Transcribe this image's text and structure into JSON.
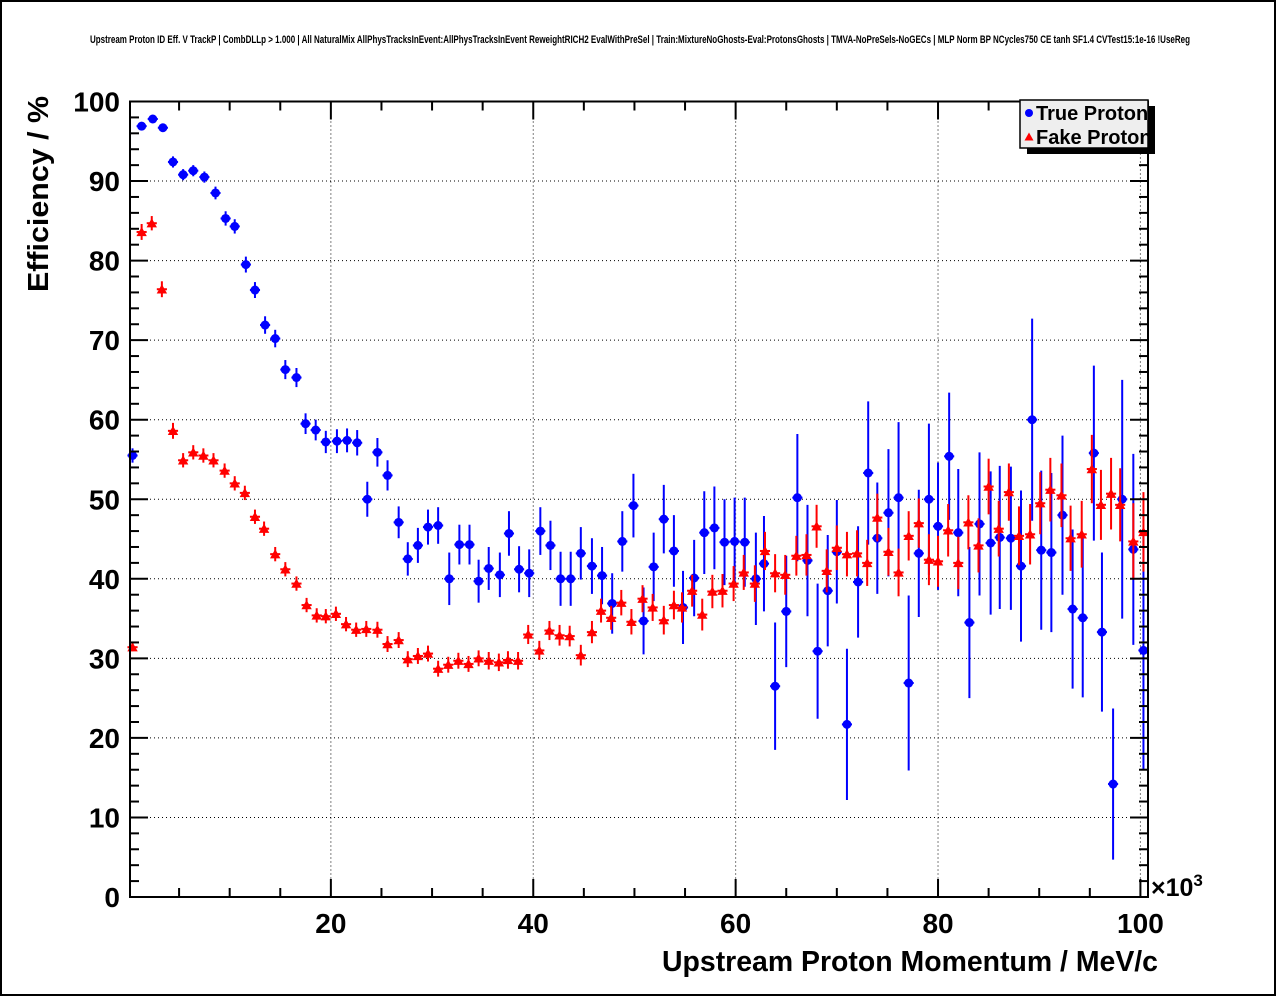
{
  "canvas": {
    "title": "Upstream Proton ID Eff. V TrackP | CombDLLp > 1.000 | All NaturalMix AllPhysTracksInEvent:AllPhysTracksInEvent ReweightRICH2 EvalWithPreSel | Train:MixtureNoGhosts-Eval:ProtonsGhosts | TMVA-NoPreSels-NoGECs | MLP Norm BP NCycles750 CE tanh SF1.4 CVTest15:1e-16 !UseReg",
    "background": "#ffffff",
    "border_color": "#000000"
  },
  "chart_data": {
    "type": "scatter",
    "title": "Upstream Proton ID Eff. V TrackP | CombDLLp > 1.000 | All NaturalMix AllPhysTracksInEvent:AllPhysTracksInEvent ReweightRICH2 EvalWithPreSel | Train:MixtureNoGhosts-Eval:ProtonsGhosts | TMVA-NoPreSels-NoGECs | MLP Norm BP NCycles750 CE tanh SF1.4 CVTest15:1e-16 !UseReg",
    "xlabel": "Upstream Proton Momentum / MeV/c",
    "ylabel": "Efficiency / %",
    "x_scale_label": {
      "mantissa": "×10",
      "exponent": "3"
    },
    "x_unit": "10^3 MeV/c",
    "xlim": [
      0.15,
      100.75
    ],
    "ylim": [
      0,
      100
    ],
    "x_major_ticks": [
      20,
      40,
      60,
      80,
      100
    ],
    "x_minor_step": 5,
    "y_major_ticks": [
      0,
      10,
      20,
      30,
      40,
      50,
      60,
      70,
      80,
      90,
      100
    ],
    "y_minor_step": 2,
    "grid": "dotted-on-major-ticks-both-axes",
    "legend": {
      "position": "top-right",
      "background": "#eeeeee",
      "border_color": "#000000",
      "entries": [
        {
          "label": "True Proton",
          "marker": "circle",
          "color": "#0000ff"
        },
        {
          "label": "Fake Proton",
          "marker": "triangle-up",
          "color": "#ff0000"
        }
      ]
    },
    "series": [
      {
        "name": "True Proton",
        "color": "#0000ff",
        "marker": "circle",
        "x_half_bin_width": 0.5,
        "points_format": [
          "momentum_10e3_MeVc",
          "efficiency_pct",
          "error_pct"
        ],
        "points": [
          [
            0.4,
            55.5,
            0.9
          ],
          [
            1.3,
            96.9,
            0.5
          ],
          [
            2.4,
            97.8,
            0.4
          ],
          [
            3.4,
            96.7,
            0.5
          ],
          [
            4.4,
            92.4,
            0.7
          ],
          [
            5.4,
            90.8,
            0.7
          ],
          [
            6.4,
            91.3,
            0.7
          ],
          [
            7.5,
            90.5,
            0.7
          ],
          [
            8.6,
            88.5,
            0.8
          ],
          [
            9.6,
            85.3,
            0.9
          ],
          [
            10.5,
            84.3,
            0.9
          ],
          [
            11.6,
            79.5,
            1.0
          ],
          [
            12.5,
            76.3,
            1.0
          ],
          [
            13.5,
            71.9,
            1.1
          ],
          [
            14.5,
            70.2,
            1.1
          ],
          [
            15.5,
            66.3,
            1.2
          ],
          [
            16.6,
            65.3,
            1.2
          ],
          [
            17.5,
            59.5,
            1.3
          ],
          [
            18.5,
            58.7,
            1.3
          ],
          [
            19.5,
            57.2,
            1.4
          ],
          [
            20.6,
            57.3,
            1.5
          ],
          [
            21.6,
            57.4,
            1.5
          ],
          [
            22.6,
            57.1,
            1.6
          ],
          [
            23.6,
            50.0,
            2.2
          ],
          [
            24.6,
            55.9,
            1.8
          ],
          [
            25.6,
            53.0,
            1.9
          ],
          [
            26.7,
            47.1,
            2.0
          ],
          [
            27.6,
            42.5,
            2.1
          ],
          [
            28.6,
            44.2,
            2.2
          ],
          [
            29.6,
            46.5,
            2.2
          ],
          [
            30.6,
            46.7,
            2.3
          ],
          [
            31.7,
            40.0,
            3.3
          ],
          [
            32.7,
            44.3,
            2.5
          ],
          [
            33.7,
            44.3,
            2.5
          ],
          [
            34.6,
            39.7,
            2.7
          ],
          [
            35.6,
            41.3,
            2.7
          ],
          [
            36.7,
            40.5,
            2.8
          ],
          [
            37.6,
            45.7,
            2.8
          ],
          [
            38.6,
            41.2,
            2.9
          ],
          [
            39.6,
            40.7,
            3.0
          ],
          [
            40.7,
            46.0,
            3.0
          ],
          [
            41.7,
            44.2,
            3.1
          ],
          [
            42.7,
            40.0,
            3.4
          ],
          [
            43.7,
            40.0,
            3.4
          ],
          [
            44.7,
            43.2,
            3.3
          ],
          [
            45.8,
            41.6,
            3.5
          ],
          [
            46.8,
            40.4,
            3.6
          ],
          [
            47.8,
            36.9,
            3.8
          ],
          [
            48.8,
            44.7,
            3.8
          ],
          [
            49.9,
            49.2,
            4.0
          ],
          [
            50.9,
            34.7,
            4.2
          ],
          [
            51.9,
            41.5,
            4.3
          ],
          [
            52.9,
            47.5,
            4.3
          ],
          [
            53.9,
            43.5,
            4.5
          ],
          [
            54.8,
            36.4,
            4.6
          ],
          [
            55.9,
            40.1,
            4.8
          ],
          [
            56.9,
            45.8,
            5.2
          ],
          [
            57.9,
            46.4,
            5.2
          ],
          [
            58.9,
            44.6,
            5.4
          ],
          [
            59.9,
            44.7,
            5.5
          ],
          [
            60.9,
            44.6,
            5.6
          ],
          [
            62.0,
            40.0,
            5.8
          ],
          [
            62.8,
            41.9,
            6.0
          ],
          [
            63.9,
            26.5,
            8.0
          ],
          [
            65.0,
            35.9,
            7.0
          ],
          [
            66.1,
            50.2,
            8.0
          ],
          [
            67.1,
            42.3,
            7.0
          ],
          [
            68.1,
            30.9,
            8.5
          ],
          [
            69.1,
            38.5,
            7.0
          ],
          [
            70.0,
            43.4,
            6.5
          ],
          [
            71.0,
            21.7,
            9.5
          ],
          [
            72.1,
            39.6,
            7.0
          ],
          [
            73.1,
            53.3,
            9.0
          ],
          [
            74.0,
            45.1,
            7.0
          ],
          [
            75.1,
            48.3,
            8.0
          ],
          [
            76.1,
            50.2,
            9.5
          ],
          [
            77.1,
            26.9,
            11.0
          ],
          [
            78.1,
            43.2,
            8.0
          ],
          [
            79.1,
            50.0,
            9.5
          ],
          [
            80.0,
            46.6,
            8.0
          ],
          [
            81.1,
            55.4,
            8.0
          ],
          [
            82.0,
            45.8,
            8.0
          ],
          [
            83.1,
            34.5,
            9.5
          ],
          [
            84.1,
            46.9,
            9.0
          ],
          [
            85.2,
            44.5,
            9.0
          ],
          [
            86.1,
            45.2,
            9.0
          ],
          [
            87.2,
            45.1,
            9.0
          ],
          [
            88.2,
            41.6,
            9.5
          ],
          [
            89.3,
            60.0,
            12.7
          ],
          [
            90.2,
            43.6,
            10.0
          ],
          [
            91.2,
            43.3,
            10.0
          ],
          [
            92.3,
            48.0,
            10.0
          ],
          [
            93.3,
            36.2,
            10.0
          ],
          [
            94.3,
            35.1,
            10.0
          ],
          [
            95.4,
            55.8,
            11.0
          ],
          [
            96.2,
            33.3,
            10.0
          ],
          [
            97.3,
            14.2,
            9.5
          ],
          [
            98.2,
            50.0,
            15.0
          ],
          [
            99.3,
            43.7,
            12.0
          ],
          [
            100.3,
            31.0,
            15.0
          ]
        ]
      },
      {
        "name": "Fake Proton",
        "color": "#ff0000",
        "marker": "triangle-up",
        "x_half_bin_width": 0.5,
        "points_format": [
          "momentum_10e3_MeVc",
          "efficiency_pct",
          "error_pct"
        ],
        "points": [
          [
            0.4,
            31.4,
            0.5
          ],
          [
            1.3,
            83.6,
            1.0
          ],
          [
            2.3,
            84.7,
            0.9
          ],
          [
            3.3,
            76.4,
            1.0
          ],
          [
            4.4,
            58.6,
            1.0
          ],
          [
            5.4,
            54.9,
            0.9
          ],
          [
            6.4,
            55.9,
            0.9
          ],
          [
            7.4,
            55.5,
            0.9
          ],
          [
            8.4,
            54.9,
            0.9
          ],
          [
            9.5,
            53.6,
            0.9
          ],
          [
            10.5,
            52.0,
            0.9
          ],
          [
            11.5,
            50.8,
            0.9
          ],
          [
            12.5,
            47.8,
            0.9
          ],
          [
            13.4,
            46.3,
            0.9
          ],
          [
            14.5,
            43.1,
            0.9
          ],
          [
            15.5,
            41.2,
            0.9
          ],
          [
            16.6,
            39.4,
            0.9
          ],
          [
            17.6,
            36.7,
            0.9
          ],
          [
            18.6,
            35.4,
            0.9
          ],
          [
            19.5,
            35.3,
            0.9
          ],
          [
            20.5,
            35.6,
            0.9
          ],
          [
            21.5,
            34.3,
            0.9
          ],
          [
            22.5,
            33.6,
            0.9
          ],
          [
            23.5,
            33.7,
            1.0
          ],
          [
            24.6,
            33.6,
            1.0
          ],
          [
            25.6,
            31.8,
            1.0
          ],
          [
            26.7,
            32.3,
            1.0
          ],
          [
            27.6,
            29.9,
            1.0
          ],
          [
            28.6,
            30.3,
            1.0
          ],
          [
            29.6,
            30.6,
            1.0
          ],
          [
            30.6,
            28.7,
            1.0
          ],
          [
            31.6,
            29.2,
            1.0
          ],
          [
            32.6,
            29.7,
            1.0
          ],
          [
            33.6,
            29.3,
            1.0
          ],
          [
            34.6,
            30.0,
            1.0
          ],
          [
            35.6,
            29.7,
            1.1
          ],
          [
            36.6,
            29.5,
            1.1
          ],
          [
            37.5,
            29.8,
            1.1
          ],
          [
            38.5,
            29.7,
            1.1
          ],
          [
            39.5,
            33.0,
            1.2
          ],
          [
            40.6,
            31.0,
            1.2
          ],
          [
            41.6,
            33.5,
            1.2
          ],
          [
            42.6,
            32.9,
            1.3
          ],
          [
            43.6,
            32.8,
            1.3
          ],
          [
            44.7,
            30.4,
            1.3
          ],
          [
            45.8,
            33.3,
            1.4
          ],
          [
            46.7,
            36.0,
            1.5
          ],
          [
            47.7,
            35.1,
            1.5
          ],
          [
            48.7,
            37.0,
            1.6
          ],
          [
            49.7,
            34.6,
            1.6
          ],
          [
            50.8,
            37.5,
            1.7
          ],
          [
            51.8,
            36.4,
            1.7
          ],
          [
            52.9,
            34.8,
            1.8
          ],
          [
            53.9,
            36.7,
            1.8
          ],
          [
            54.7,
            36.4,
            1.9
          ],
          [
            55.7,
            38.5,
            2.0
          ],
          [
            56.7,
            35.5,
            2.0
          ],
          [
            57.7,
            38.4,
            2.1
          ],
          [
            58.7,
            38.5,
            2.1
          ],
          [
            59.8,
            39.4,
            2.2
          ],
          [
            60.8,
            40.8,
            2.2
          ],
          [
            61.9,
            39.4,
            2.3
          ],
          [
            62.9,
            43.5,
            2.4
          ],
          [
            63.9,
            40.7,
            2.4
          ],
          [
            64.9,
            40.5,
            2.5
          ],
          [
            66.0,
            42.9,
            2.5
          ],
          [
            67.0,
            43.0,
            2.6
          ],
          [
            68.0,
            46.6,
            2.7
          ],
          [
            69.0,
            41.0,
            2.7
          ],
          [
            70.0,
            43.9,
            2.8
          ],
          [
            71.0,
            43.1,
            2.8
          ],
          [
            72.0,
            43.2,
            2.9
          ],
          [
            73.0,
            42.0,
            2.9
          ],
          [
            74.0,
            47.7,
            3.0
          ],
          [
            75.1,
            43.4,
            3.0
          ],
          [
            76.1,
            40.8,
            3.0
          ],
          [
            77.1,
            45.4,
            3.1
          ],
          [
            78.1,
            47.0,
            3.1
          ],
          [
            79.1,
            42.4,
            3.2
          ],
          [
            80.0,
            42.2,
            3.2
          ],
          [
            81.0,
            46.1,
            3.3
          ],
          [
            82.0,
            42.0,
            3.3
          ],
          [
            83.0,
            47.1,
            3.4
          ],
          [
            84.0,
            44.2,
            3.4
          ],
          [
            85.0,
            51.6,
            3.5
          ],
          [
            86.0,
            46.3,
            3.5
          ],
          [
            87.0,
            50.9,
            3.6
          ],
          [
            88.0,
            45.4,
            3.7
          ],
          [
            89.1,
            45.6,
            3.8
          ],
          [
            90.1,
            49.5,
            3.9
          ],
          [
            91.1,
            51.2,
            4.0
          ],
          [
            92.2,
            50.5,
            4.0
          ],
          [
            93.1,
            45.1,
            4.1
          ],
          [
            94.2,
            45.6,
            4.2
          ],
          [
            95.2,
            53.8,
            4.3
          ],
          [
            96.1,
            49.3,
            4.4
          ],
          [
            97.1,
            50.7,
            4.5
          ],
          [
            98.0,
            49.3,
            4.6
          ],
          [
            99.3,
            44.7,
            4.8
          ],
          [
            100.3,
            45.9,
            5.0
          ]
        ]
      }
    ]
  }
}
